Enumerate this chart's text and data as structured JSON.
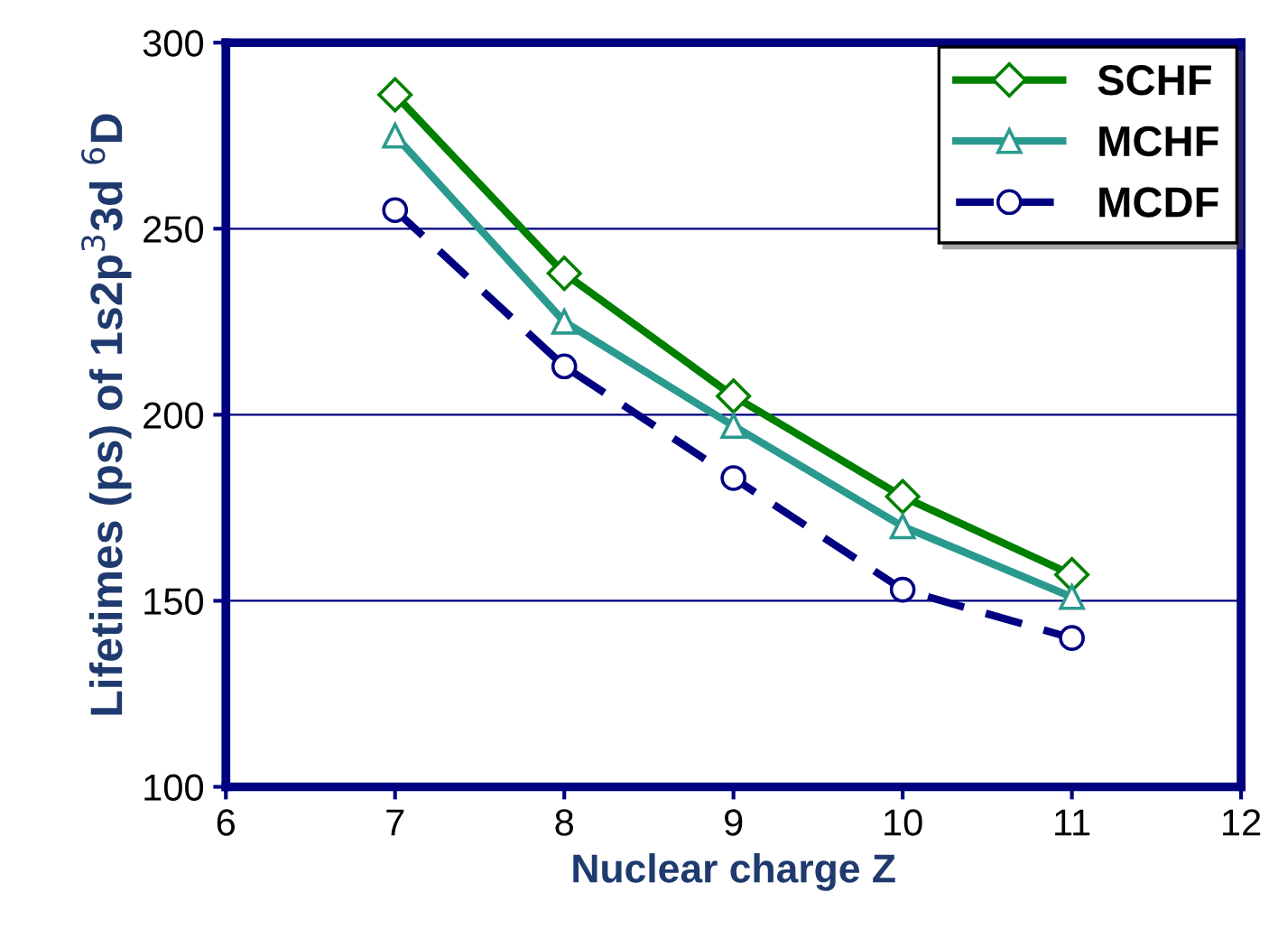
{
  "chart_data": {
    "type": "line",
    "xlabel": "Nuclear charge Z",
    "ylabel": "Lifetimes (ps) of 1s2p$^{3}$3d $^{6}$D",
    "x": [
      7,
      8,
      9,
      10,
      11
    ],
    "series": [
      {
        "name": "SCHF",
        "color": "#008000",
        "marker": "diamond",
        "line_style": "solid",
        "values": [
          286,
          238,
          205,
          178,
          157
        ]
      },
      {
        "name": "MCHF",
        "color": "#2a9a8f",
        "marker": "triangle",
        "line_style": "solid",
        "values": [
          275,
          225,
          197,
          170,
          151
        ]
      },
      {
        "name": "MCDF",
        "color": "#000080",
        "marker": "circle",
        "line_style": "dashed",
        "values": [
          255,
          213,
          183,
          153,
          140
        ]
      }
    ],
    "xlim": [
      6,
      12
    ],
    "xticks": [
      6,
      7,
      8,
      9,
      10,
      11,
      12
    ],
    "ylim": [
      100,
      300
    ],
    "yticks": [
      100,
      150,
      200,
      250,
      300
    ],
    "grid": "y",
    "legend": "top right"
  }
}
